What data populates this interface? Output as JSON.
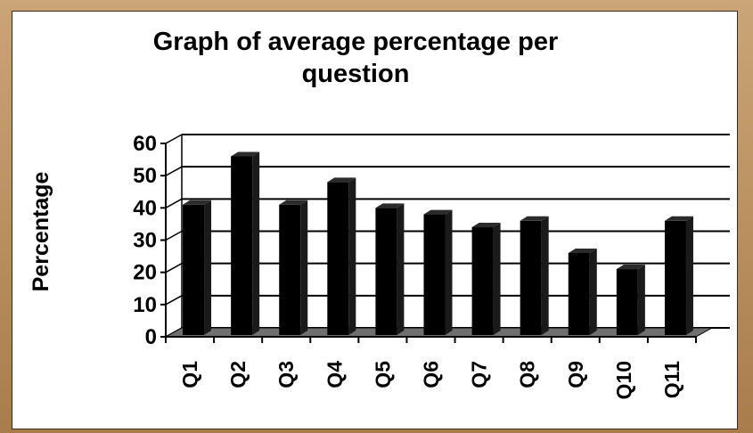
{
  "chart_data": {
    "type": "bar",
    "title": "Graph of average percentage per\nquestion",
    "xlabel": "",
    "ylabel": "Percentage",
    "categories": [
      "Q1",
      "Q2",
      "Q3",
      "Q4",
      "Q5",
      "Q6",
      "Q7",
      "Q8",
      "Q9",
      "Q10",
      "Q11"
    ],
    "values": [
      41,
      56,
      41,
      48,
      40,
      38,
      34,
      36,
      26,
      21,
      36
    ],
    "ylim": [
      0,
      60
    ],
    "yticks": [
      "0",
      "10",
      "20",
      "30",
      "40",
      "50",
      "60"
    ],
    "grid": true,
    "style": "3d-column",
    "colors": {
      "bar": "#000000",
      "floor": "#6f6f6f",
      "panel": "#ffffff",
      "background": "#b98f5f"
    }
  }
}
